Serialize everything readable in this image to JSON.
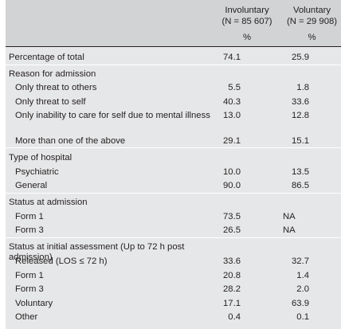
{
  "header": {
    "involuntary": {
      "title": "Involuntary",
      "n": "(N = 85 607)",
      "unit": "%"
    },
    "voluntary": {
      "title": "Voluntary",
      "n": "(N = 29 908)",
      "unit": "%"
    }
  },
  "sections": [
    {
      "rows": [
        {
          "label": "Percentage of total",
          "involuntary": "74.1",
          "voluntary": "25.9",
          "sub": false
        }
      ]
    },
    {
      "rows": [
        {
          "label": "Reason for admission",
          "involuntary": "",
          "voluntary": "",
          "sub": false
        },
        {
          "label": "Only threat to others",
          "involuntary": "5.5",
          "voluntary": "1.8",
          "sub": true
        },
        {
          "label": "Only threat to self",
          "involuntary": "40.3",
          "voluntary": "33.6",
          "sub": true
        },
        {
          "label": "Only inability to care for self due to mental illness",
          "involuntary": "13.0",
          "voluntary": "12.8",
          "sub": true
        },
        {
          "label": "More than one of the above",
          "involuntary": "29.1",
          "voluntary": "15.1",
          "sub": true
        }
      ]
    },
    {
      "rows": [
        {
          "label": "Type of hospital",
          "involuntary": "",
          "voluntary": "",
          "sub": false
        },
        {
          "label": "Psychiatric",
          "involuntary": "10.0",
          "voluntary": "13.5",
          "sub": true
        },
        {
          "label": "General",
          "involuntary": "90.0",
          "voluntary": "86.5",
          "sub": true
        }
      ]
    },
    {
      "rows": [
        {
          "label": "Status at admission",
          "involuntary": "",
          "voluntary": "",
          "sub": false
        },
        {
          "label": "Form 1",
          "involuntary": "73.5",
          "voluntary": "NA",
          "sub": true
        },
        {
          "label": "Form 3",
          "involuntary": "26.5",
          "voluntary": "NA",
          "sub": true
        }
      ]
    },
    {
      "rows": [
        {
          "label": "Status at initial assessment (Up to 72 h post admission)",
          "involuntary": "",
          "voluntary": "",
          "sub": false
        },
        {
          "label": "Released (LOS ≤ 72 h)",
          "involuntary": "33.6",
          "voluntary": "32.7",
          "sub": true
        },
        {
          "label": "Form 1",
          "involuntary": "20.8",
          "voluntary": "1.4",
          "sub": true
        },
        {
          "label": "Form 3",
          "involuntary": "28.2",
          "voluntary": "2.0",
          "sub": true
        },
        {
          "label": "Voluntary",
          "involuntary": "17.1",
          "voluntary": "63.9",
          "sub": true
        },
        {
          "label": "Other",
          "involuntary": "0.4",
          "voluntary": "0.1",
          "sub": true
        }
      ]
    }
  ]
}
